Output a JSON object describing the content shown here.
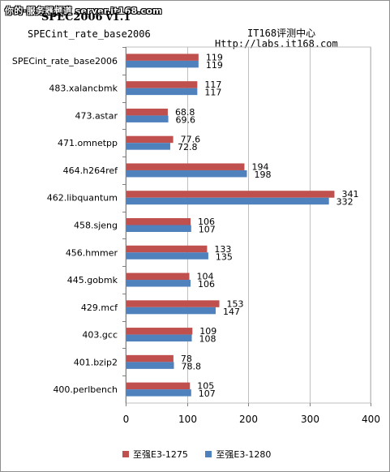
{
  "watermark": "你的·服务器频道 server.it168.com",
  "header": {
    "title": "SPEC2006 v1.1",
    "subtitle": "SPECint_rate_base2006",
    "site_name": "IT168评测中心",
    "site_url": "Http://labs.it168.com"
  },
  "chart_data": {
    "type": "bar",
    "orientation": "horizontal",
    "categories": [
      "SPECint_rate_base2006",
      "483.xalancbmk",
      "473.astar",
      "471.omnetpp",
      "464.h264ref",
      "462.libquantum",
      "458.sjeng",
      "456.hmmer",
      "445.gobmk",
      "429.mcf",
      "403.gcc",
      "401.bzip2",
      "400.perlbench"
    ],
    "series": [
      {
        "name": "至强E3-1275",
        "color": "#c0504d",
        "values": [
          119,
          117,
          68.8,
          77.6,
          194,
          341,
          106,
          133,
          104,
          153,
          109,
          78,
          105
        ],
        "labels": [
          "119",
          "117",
          "68.8",
          "77.6",
          "194",
          "341",
          "106",
          "133",
          "104",
          "153",
          "109",
          "78",
          "105"
        ]
      },
      {
        "name": "至强E3-1280",
        "color": "#4f81bd",
        "values": [
          119,
          117,
          69.6,
          72.8,
          198,
          332,
          107,
          135,
          106,
          147,
          108,
          78.8,
          107
        ],
        "labels": [
          "119",
          "117",
          "69.6",
          "72.8",
          "198",
          "332",
          "107",
          "135",
          "106",
          "147",
          "108",
          "78.8",
          "107"
        ]
      }
    ],
    "xlim": [
      0,
      400
    ],
    "xticks": [
      "0",
      "100",
      "200",
      "300",
      "400"
    ],
    "grid": true,
    "legend_position": "bottom"
  }
}
